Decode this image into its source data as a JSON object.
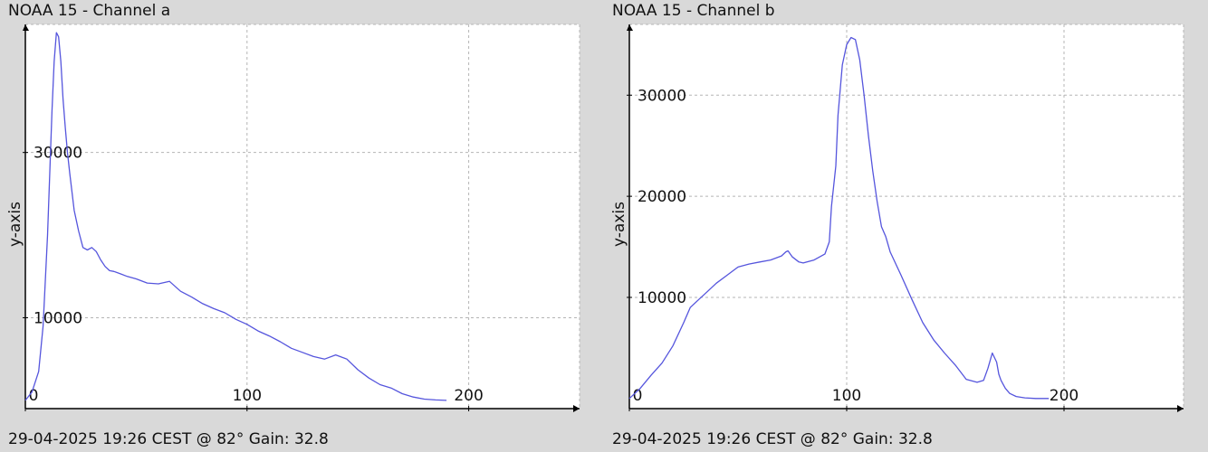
{
  "colors": {
    "line": "#5555dd",
    "grid": "#b5b5b5",
    "axis": "#000000",
    "plot_bg": "#ffffff",
    "page_bg": "#d9d9d9"
  },
  "chart_data": [
    {
      "type": "line",
      "title": "NOAA 15 - Channel a",
      "footer": "29-04-2025 19:26 CEST @ 82° Gain: 32.8",
      "ylabel": "y-axis",
      "xlabel": "",
      "xlim": [
        0,
        250
      ],
      "ylim": [
        -1000,
        45500
      ],
      "xticks": [
        0,
        100,
        200
      ],
      "yticks": [
        10000,
        30000
      ],
      "grid": true,
      "series": [
        {
          "x": [
            0,
            3,
            6,
            8,
            10,
            12,
            13,
            14,
            15,
            16,
            17,
            18,
            19,
            20,
            22,
            24,
            26,
            28,
            30,
            32,
            34,
            36,
            38,
            40,
            43,
            46,
            50,
            55,
            60,
            65,
            70,
            75,
            80,
            85,
            90,
            95,
            100,
            105,
            110,
            115,
            120,
            125,
            130,
            135,
            140,
            145,
            150,
            155,
            160,
            165,
            170,
            175,
            180,
            185,
            190
          ],
          "y": [
            0,
            1000,
            3500,
            9000,
            20000,
            35000,
            41000,
            44500,
            44000,
            41000,
            36500,
            33000,
            30000,
            27500,
            23000,
            20500,
            18500,
            18200,
            18500,
            18000,
            17000,
            16200,
            15700,
            15600,
            15300,
            15000,
            14700,
            14200,
            14100,
            14400,
            13200,
            12500,
            11700,
            11100,
            10600,
            9800,
            9200,
            8400,
            7800,
            7100,
            6300,
            5800,
            5300,
            5000,
            5500,
            5000,
            3700,
            2700,
            1900,
            1500,
            800,
            400,
            150,
            50,
            0
          ]
        }
      ]
    },
    {
      "type": "line",
      "title": "NOAA 15 - Channel b",
      "footer": "29-04-2025 19:26 CEST @ 82° Gain: 32.8",
      "ylabel": "y-axis",
      "xlabel": "",
      "xlim": [
        0,
        255
      ],
      "ylim": [
        -1000,
        37000
      ],
      "xticks": [
        0,
        100,
        200
      ],
      "yticks": [
        10000,
        20000,
        30000
      ],
      "grid": true,
      "series": [
        {
          "x": [
            0,
            5,
            10,
            15,
            20,
            25,
            28,
            32,
            36,
            40,
            45,
            50,
            55,
            60,
            65,
            70,
            72,
            73,
            75,
            78,
            80,
            85,
            90,
            92,
            93,
            95,
            96,
            98,
            100,
            102,
            104,
            106,
            108,
            110,
            112,
            114,
            116,
            118,
            120,
            125,
            130,
            135,
            140,
            145,
            150,
            155,
            160,
            163,
            165,
            167,
            169,
            170,
            171,
            172,
            173,
            175,
            178,
            182,
            187,
            193
          ],
          "y": [
            0,
            1000,
            2300,
            3500,
            5200,
            7500,
            9000,
            9800,
            10600,
            11400,
            12200,
            13000,
            13300,
            13500,
            13700,
            14100,
            14500,
            14600,
            14000,
            13500,
            13400,
            13700,
            14300,
            15500,
            19000,
            23000,
            28000,
            33000,
            35000,
            35700,
            35500,
            33500,
            30000,
            26000,
            22500,
            19500,
            17000,
            16000,
            14500,
            12200,
            9800,
            7500,
            5800,
            4500,
            3300,
            1900,
            1600,
            1800,
            3000,
            4500,
            3600,
            2400,
            1800,
            1400,
            1000,
            500,
            200,
            60,
            0,
            0
          ]
        }
      ]
    }
  ]
}
